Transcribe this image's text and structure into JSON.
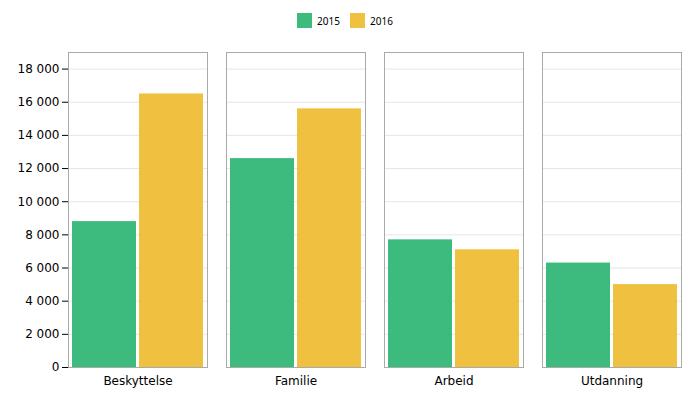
{
  "chart_data": {
    "type": "bar",
    "categories": [
      "Beskyttelse",
      "Familie",
      "Arbeid",
      "Utdanning"
    ],
    "series": [
      {
        "name": "2015",
        "color": "#3dba7e",
        "values": [
          8800,
          12600,
          7700,
          6300
        ]
      },
      {
        "name": "2016",
        "color": "#f0c040",
        "values": [
          16500,
          15600,
          7100,
          5000
        ]
      }
    ],
    "ylim": [
      0,
      19000
    ],
    "yticks": [
      0,
      {
        "value": 2000,
        "label": "2 000"
      },
      {
        "value": 4000,
        "label": "4 000"
      },
      {
        "value": 6000,
        "label": "6 000"
      },
      {
        "value": 8000,
        "label": "8 000"
      },
      {
        "value": 10000,
        "label": "10 000"
      },
      {
        "value": 12000,
        "label": "12 000"
      },
      {
        "value": 14000,
        "label": "14 000"
      },
      {
        "value": 16000,
        "label": "16 000"
      },
      {
        "value": 18000,
        "label": "18 000"
      }
    ],
    "grid": true,
    "legend": "upper center"
  }
}
